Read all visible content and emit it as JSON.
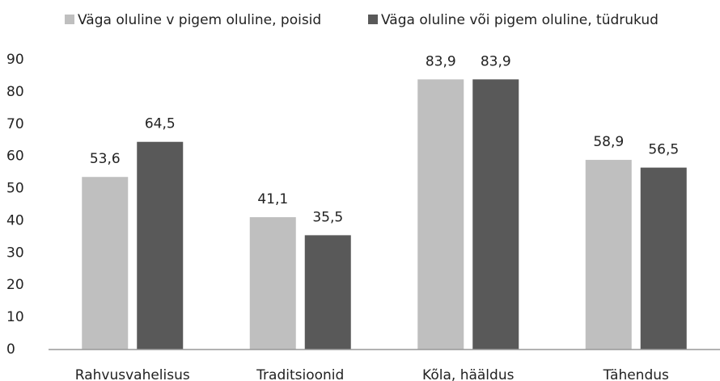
{
  "chart_data": {
    "type": "bar",
    "categories": [
      "Rahvusvahelisus",
      "Traditsioonid",
      "Kõla, hääldus",
      "Tähendus"
    ],
    "series": [
      {
        "name": "Väga oluline v pigem oluline, poisid",
        "color": "#bfbfbf",
        "values": [
          53.6,
          41.1,
          83.9,
          58.9
        ],
        "value_labels": [
          "53,6",
          "41,1",
          "83,9",
          "58,9"
        ]
      },
      {
        "name": "Väga oluline või pigem oluline, tüdrukud",
        "color": "#595959",
        "values": [
          64.5,
          35.5,
          83.9,
          56.5
        ],
        "value_labels": [
          "64,5",
          "35,5",
          "83,9",
          "56,5"
        ]
      }
    ],
    "ylim": [
      0,
      90
    ],
    "yticks": [
      0,
      10,
      20,
      30,
      40,
      50,
      60,
      70,
      80,
      90
    ],
    "grid": false,
    "legend": "top"
  }
}
